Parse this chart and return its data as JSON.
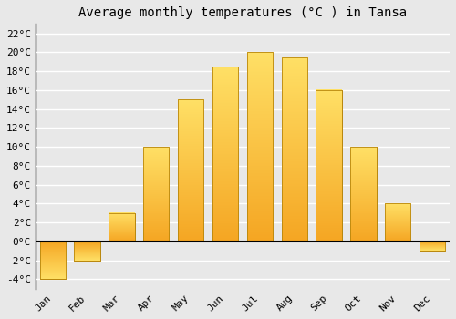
{
  "months": [
    "Jan",
    "Feb",
    "Mar",
    "Apr",
    "May",
    "Jun",
    "Jul",
    "Aug",
    "Sep",
    "Oct",
    "Nov",
    "Dec"
  ],
  "temperatures": [
    -4,
    -2,
    3,
    10,
    15,
    18.5,
    20,
    19.5,
    16,
    10,
    4,
    -1
  ],
  "bar_color_bottom": "#F5A623",
  "bar_color_top": "#FFD966",
  "bar_edge_color": "#B8860B",
  "title": "Average monthly temperatures (°C ) in Tansa",
  "ylim": [
    -5,
    23
  ],
  "yticks": [
    -4,
    -2,
    0,
    2,
    4,
    6,
    8,
    10,
    12,
    14,
    16,
    18,
    20,
    22
  ],
  "ytick_labels": [
    "-4°C",
    "-2°C",
    "0°C",
    "2°C",
    "4°C",
    "6°C",
    "8°C",
    "10°C",
    "12°C",
    "14°C",
    "16°C",
    "18°C",
    "20°C",
    "22°C"
  ],
  "background_color": "#e8e8e8",
  "plot_bg_color": "#e8e8e8",
  "grid_color": "#ffffff",
  "title_fontsize": 10,
  "tick_fontsize": 8,
  "font_family": "monospace",
  "bar_width": 0.75
}
